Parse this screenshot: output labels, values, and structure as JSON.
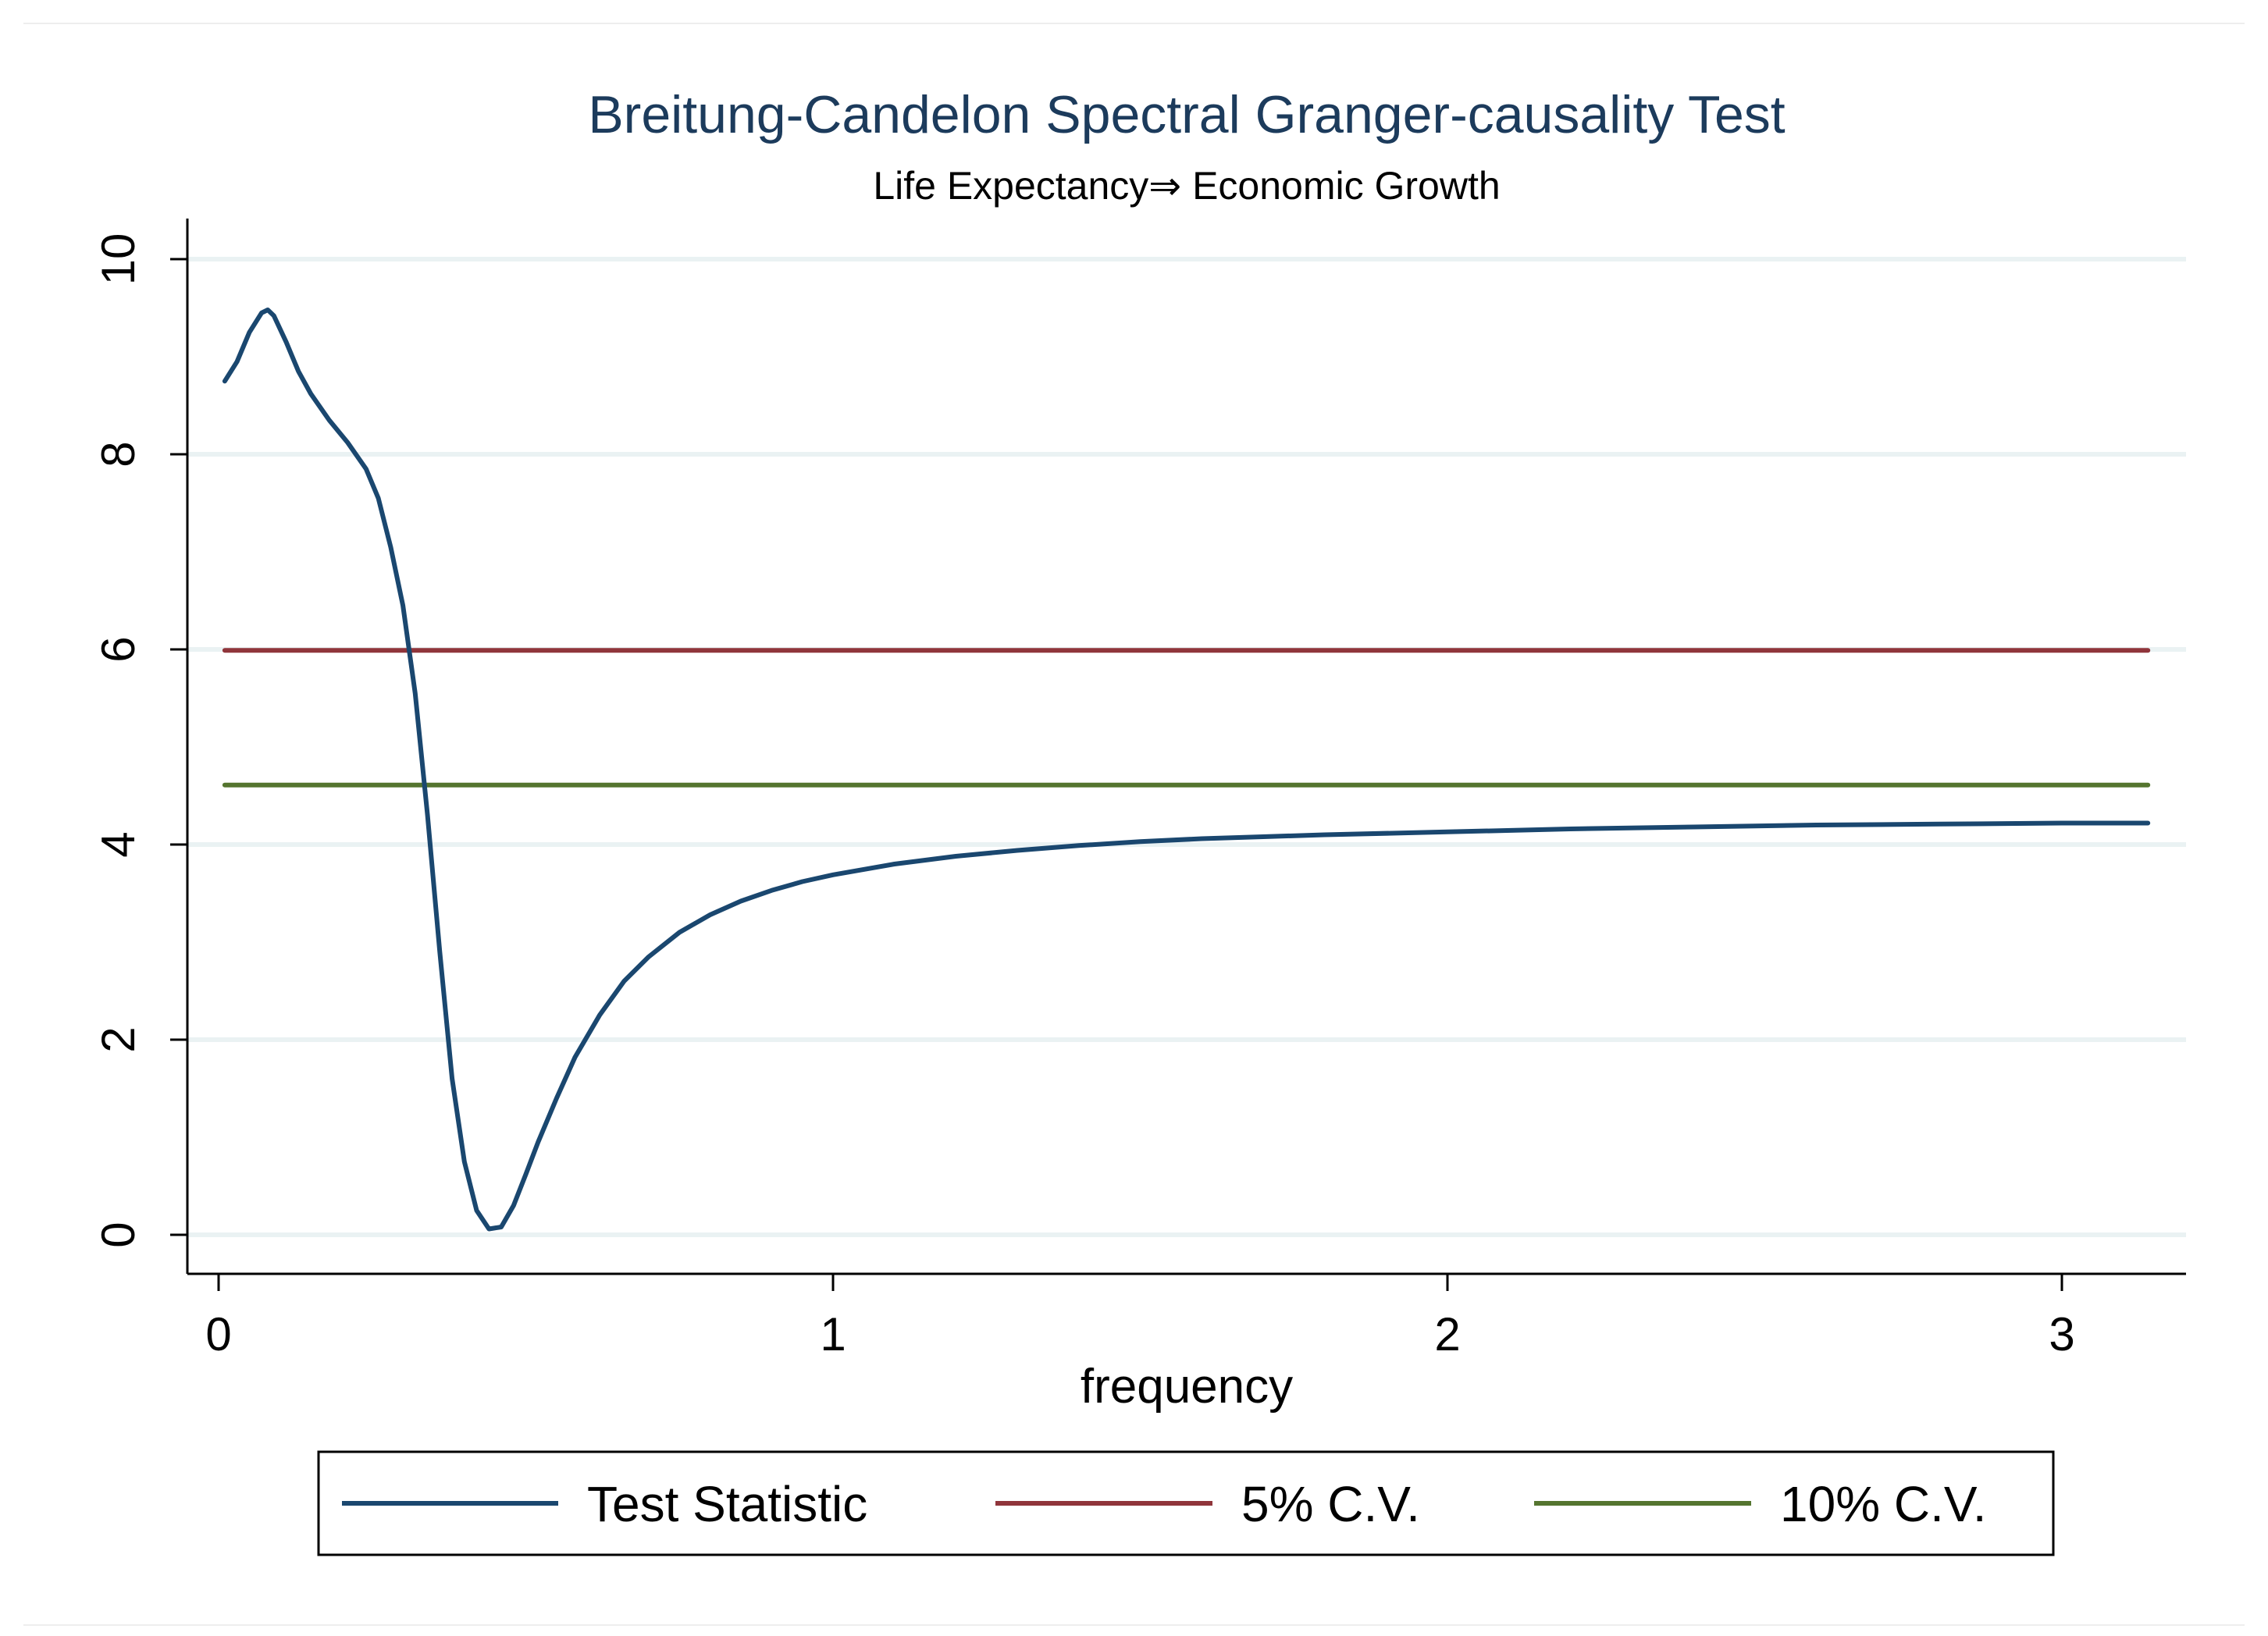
{
  "chart_data": {
    "type": "line",
    "title": "Breitung-Candelon Spectral Granger-causality Test",
    "subtitle": "Life Expectancy⇒ Economic Growth",
    "xlabel": "frequency",
    "ylabel": "",
    "xlim": [
      0,
      3.14159
    ],
    "ylim": [
      0,
      10
    ],
    "xticks": [
      0,
      1,
      2,
      3
    ],
    "xtick_labels": [
      "0",
      "1",
      "2",
      "3"
    ],
    "yticks": [
      0,
      2,
      4,
      6,
      8,
      10
    ],
    "ytick_labels": [
      "0",
      "2",
      "4",
      "6",
      "8",
      "10"
    ],
    "grid": true,
    "legend_position": "bottom",
    "series": [
      {
        "name": "Test Statistic",
        "color": "#1a476f",
        "x": [
          0.01,
          0.03,
          0.05,
          0.07,
          0.08,
          0.09,
          0.11,
          0.13,
          0.15,
          0.18,
          0.21,
          0.24,
          0.26,
          0.28,
          0.3,
          0.32,
          0.34,
          0.36,
          0.38,
          0.4,
          0.42,
          0.44,
          0.46,
          0.48,
          0.5,
          0.52,
          0.55,
          0.58,
          0.62,
          0.66,
          0.7,
          0.75,
          0.8,
          0.85,
          0.9,
          0.95,
          1.0,
          1.1,
          1.2,
          1.3,
          1.4,
          1.5,
          1.6,
          1.7,
          1.8,
          2.0,
          2.2,
          2.4,
          2.6,
          2.8,
          3.0,
          3.14
        ],
        "values": [
          8.75,
          8.95,
          9.25,
          9.45,
          9.48,
          9.42,
          9.15,
          8.85,
          8.62,
          8.35,
          8.12,
          7.85,
          7.55,
          7.05,
          6.45,
          5.55,
          4.3,
          2.9,
          1.6,
          0.75,
          0.25,
          0.06,
          0.08,
          0.3,
          0.62,
          0.95,
          1.4,
          1.82,
          2.25,
          2.6,
          2.85,
          3.1,
          3.28,
          3.42,
          3.53,
          3.62,
          3.69,
          3.8,
          3.88,
          3.94,
          3.99,
          4.03,
          4.06,
          4.08,
          4.1,
          4.13,
          4.16,
          4.18,
          4.2,
          4.21,
          4.22,
          4.22
        ]
      },
      {
        "name": "5% C.V.",
        "color": "#90353b",
        "x": [
          0.01,
          3.14
        ],
        "values": [
          5.99,
          5.99
        ]
      },
      {
        "name": "10% C.V.",
        "color": "#55752f",
        "x": [
          0.01,
          3.14
        ],
        "values": [
          4.61,
          4.61
        ]
      }
    ]
  },
  "colors": {
    "background": "#ffffff",
    "grid": "#eaf2f3",
    "title": "#1c3b5c"
  }
}
